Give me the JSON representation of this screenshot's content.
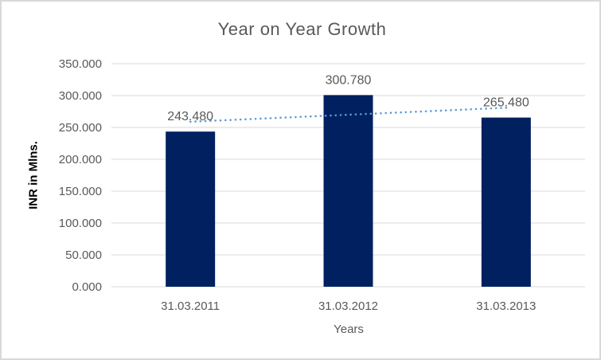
{
  "chart_data": {
    "type": "bar",
    "title": "Year on Year Growth",
    "xlabel": "Years",
    "ylabel": "INR in Mlns.",
    "categories": [
      "31.03.2011",
      "31.03.2012",
      "31.03.2013"
    ],
    "values": [
      243.48,
      300.78,
      265.48
    ],
    "data_labels": [
      "243.480",
      "300.780",
      "265.480"
    ],
    "ylim": [
      0,
      350
    ],
    "ytick_step": 50,
    "ytick_labels": [
      "0.000",
      "50.000",
      "100.000",
      "150.000",
      "200.000",
      "250.000",
      "300.000",
      "350.000"
    ],
    "grid": true,
    "legend": "none",
    "trendline": {
      "style": "dotted",
      "start_value": 258.9,
      "end_value": 280.9,
      "color": "#5B9BD5"
    },
    "colors": {
      "bar": "#002060",
      "gridline": "#D9D9D9",
      "axis_line": "#D9D9D9",
      "tick_text": "#595959",
      "title_text": "#595959",
      "data_label_text": "#595959",
      "border": "#D9D9D9",
      "background": "#FFFFFF"
    }
  }
}
